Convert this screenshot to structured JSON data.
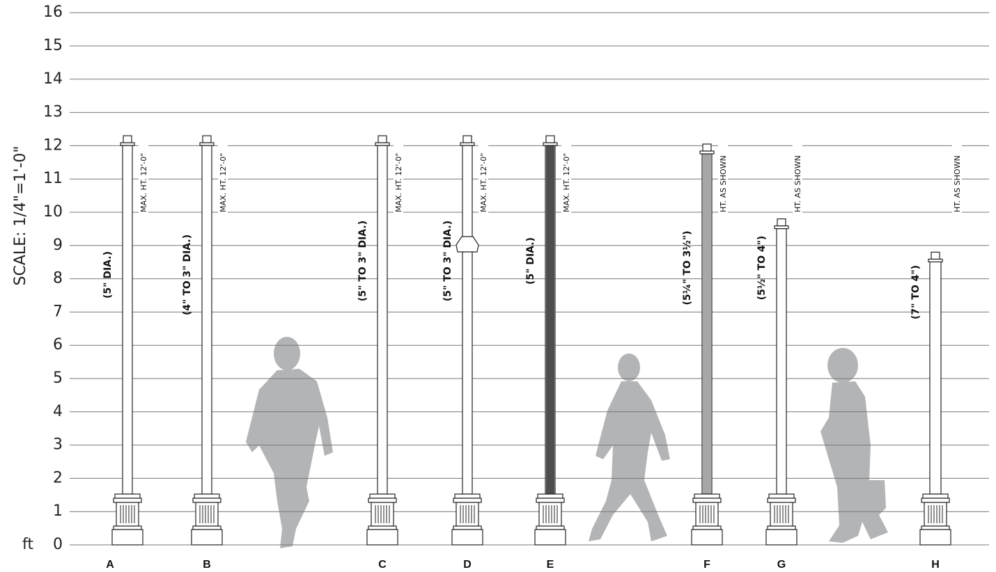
{
  "axis": {
    "label": "SCALE:  1/4\"=1'-0\"",
    "unit": "ft",
    "ticks": [
      0,
      1,
      2,
      3,
      4,
      5,
      6,
      7,
      8,
      9,
      10,
      11,
      12,
      13,
      14,
      15,
      16
    ]
  },
  "posts": [
    {
      "letter": "A",
      "diameter": "(5\" DIA.)",
      "height_note": "MAX. HT. 12'-0\""
    },
    {
      "letter": "B",
      "diameter": "(4\" TO 3\" DIA.)",
      "height_note": "MAX. HT. 12'-0\""
    },
    {
      "letter": "C",
      "diameter": "(5\" TO 3\" DIA.)",
      "height_note": "MAX. HT. 12'-0\""
    },
    {
      "letter": "D",
      "diameter": "(5\" TO 3\" DIA.)",
      "height_note": "MAX. HT. 12'-0\""
    },
    {
      "letter": "E",
      "diameter": "(5\" DIA.)",
      "height_note": "MAX. HT. 12'-0\""
    },
    {
      "letter": "F",
      "diameter": "(5¼\" TO 3½\")",
      "height_note": "HT. AS SHOWN"
    },
    {
      "letter": "G",
      "diameter": "(5½\" TO 4\")",
      "height_note": "HT. AS SHOWN"
    },
    {
      "letter": "H",
      "diameter": "(7\" TO 4\")",
      "height_note": "HT. AS SHOWN"
    }
  ]
}
